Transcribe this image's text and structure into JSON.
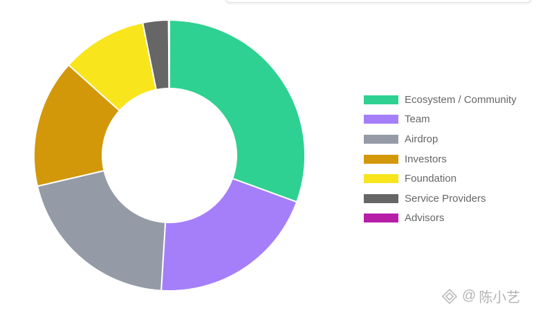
{
  "chart_data": {
    "type": "pie",
    "variant": "doughnut",
    "legend_position": "right",
    "categories": [
      "Ecosystem / Community",
      "Team",
      "Airdrop",
      "Investors",
      "Foundation",
      "Service Providers",
      "Advisors"
    ],
    "values": [
      30,
      20,
      20,
      15,
      10,
      3,
      0.1
    ],
    "colors": [
      "#2ed191",
      "#a57ffa",
      "#959ba6",
      "#d2980a",
      "#f8e51c",
      "#666666",
      "#b71ea8"
    ]
  },
  "watermark": {
    "at": "@",
    "name": "陈小艺"
  }
}
